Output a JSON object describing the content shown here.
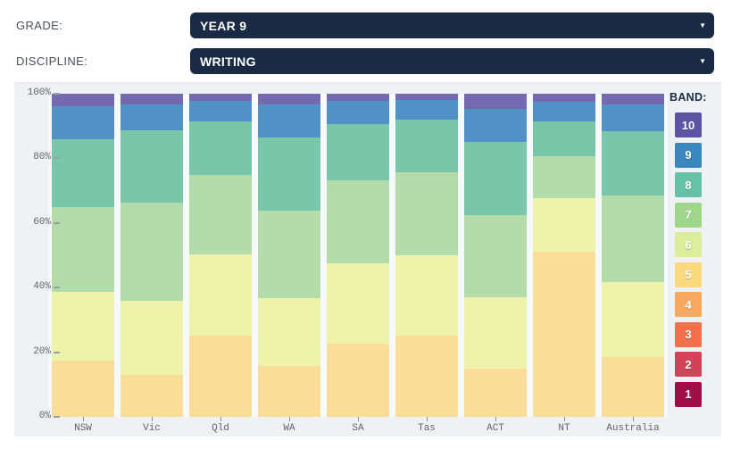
{
  "controls": {
    "grade": {
      "label": "GRADE:",
      "value": "YEAR 9"
    },
    "discipline": {
      "label": "DISCIPLINE:",
      "value": "WRITING"
    }
  },
  "icons": {
    "dropdown_arrow": "▼"
  },
  "legend": {
    "title": "BAND:",
    "bands": [
      {
        "label": "10",
        "color": "#5e54a4"
      },
      {
        "label": "9",
        "color": "#3a87bd"
      },
      {
        "label": "8",
        "color": "#66c2a5"
      },
      {
        "label": "7",
        "color": "#a0d68c"
      },
      {
        "label": "6",
        "color": "#dcee9b"
      },
      {
        "label": "5",
        "color": "#fbd97e"
      },
      {
        "label": "4",
        "color": "#f9a860"
      },
      {
        "label": "3",
        "color": "#f3704b"
      },
      {
        "label": "2",
        "color": "#d04358"
      },
      {
        "label": "1",
        "color": "#9e0e47"
      }
    ]
  },
  "chart_data": {
    "type": "bar",
    "stacked": true,
    "title": "",
    "xlabel": "",
    "ylabel": "",
    "ylim": [
      0,
      100
    ],
    "grid": false,
    "legend_position": "right",
    "y_ticks": [
      "100%",
      "80%",
      "60%",
      "40%",
      "20%",
      "0%"
    ],
    "categories": [
      "NSW",
      "Vic",
      "Qld",
      "WA",
      "SA",
      "Tas",
      "ACT",
      "NT",
      "Australia"
    ],
    "series": [
      {
        "name": "Band 5",
        "fill": "#fadd98",
        "values": [
          17.5,
          13.0,
          25.2,
          15.8,
          22.7,
          25.2,
          15.0,
          51.0,
          18.6
        ]
      },
      {
        "name": "Band 6",
        "fill": "#edf3ab",
        "values": [
          21.3,
          23.0,
          25.2,
          20.8,
          24.9,
          24.7,
          22.0,
          16.6,
          23.0
        ]
      },
      {
        "name": "Band 7",
        "fill": "#b4dcab",
        "values": [
          26.0,
          30.2,
          24.4,
          27.1,
          25.5,
          25.7,
          25.3,
          13.0,
          26.8
        ]
      },
      {
        "name": "Band 8",
        "fill": "#7ac6ab",
        "values": [
          21.1,
          22.4,
          16.6,
          22.7,
          17.5,
          16.4,
          22.7,
          10.8,
          20.0
        ]
      },
      {
        "name": "Band 9",
        "fill": "#5191c6",
        "values": [
          10.2,
          8.1,
          6.4,
          10.3,
          7.2,
          6.0,
          10.3,
          6.1,
          8.3
        ]
      },
      {
        "name": "Band 10",
        "fill": "#7569af",
        "values": [
          3.9,
          3.3,
          2.2,
          3.3,
          2.2,
          2.0,
          4.7,
          2.5,
          3.3
        ]
      }
    ]
  }
}
